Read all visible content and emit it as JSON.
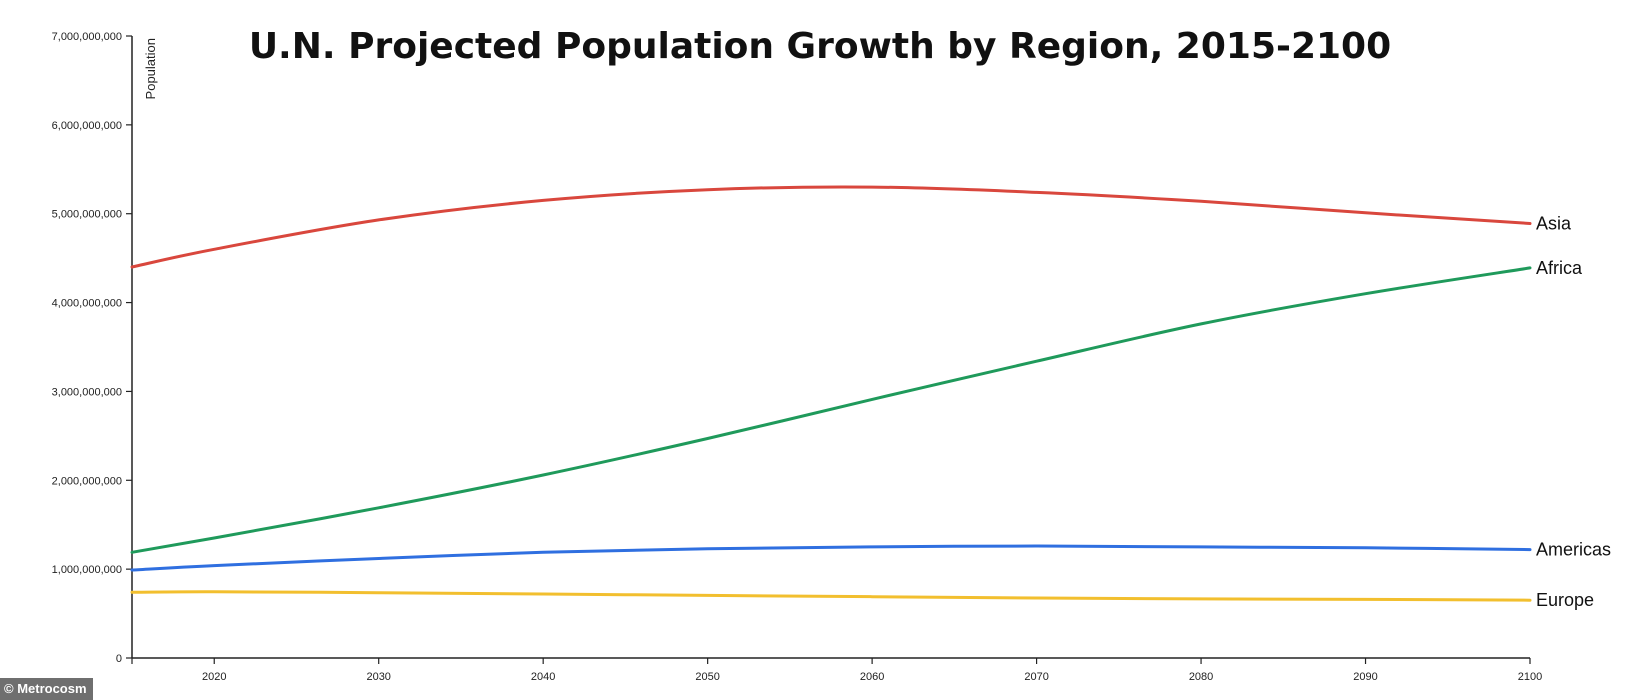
{
  "chart_data": {
    "type": "line",
    "title": "U.N. Projected Population Growth by Region, 2015-2100",
    "xlabel": "",
    "ylabel": "Population",
    "xlim": [
      2015,
      2100
    ],
    "ylim": [
      0,
      7000000000
    ],
    "x_ticks": [
      2020,
      2030,
      2040,
      2050,
      2060,
      2070,
      2080,
      2090,
      2100
    ],
    "y_ticks": [
      0,
      1000000000,
      2000000000,
      3000000000,
      4000000000,
      5000000000,
      6000000000,
      7000000000
    ],
    "x_tick_labels": [
      "2020",
      "2030",
      "2040",
      "2050",
      "2060",
      "2070",
      "2080",
      "2090",
      "2100"
    ],
    "y_tick_labels": [
      "0",
      "1,000,000,000",
      "2,000,000,000",
      "3,000,000,000",
      "4,000,000,000",
      "5,000,000,000",
      "6,000,000,000",
      "7,000,000,000"
    ],
    "grid": false,
    "legend": "direct labels at line ends (right)",
    "x": [
      2015,
      2020,
      2030,
      2040,
      2050,
      2060,
      2070,
      2080,
      2090,
      2100
    ],
    "series": [
      {
        "name": "Asia",
        "color": "#d9473d",
        "values": [
          4400000000,
          4600000000,
          4930000000,
          5150000000,
          5270000000,
          5300000000,
          5240000000,
          5140000000,
          5010000000,
          4890000000
        ]
      },
      {
        "name": "Africa",
        "color": "#1f9a5b",
        "values": [
          1190000000,
          1350000000,
          1690000000,
          2060000000,
          2470000000,
          2910000000,
          3340000000,
          3760000000,
          4100000000,
          4390000000
        ]
      },
      {
        "name": "Americas",
        "color": "#2f6fe0",
        "values": [
          990000000,
          1040000000,
          1120000000,
          1190000000,
          1230000000,
          1250000000,
          1260000000,
          1250000000,
          1240000000,
          1220000000
        ]
      },
      {
        "name": "Europe",
        "color": "#f2bf2e",
        "values": [
          740000000,
          745000000,
          735000000,
          720000000,
          705000000,
          690000000,
          675000000,
          665000000,
          660000000,
          650000000
        ]
      }
    ]
  },
  "watermark": "© Metrocosm"
}
